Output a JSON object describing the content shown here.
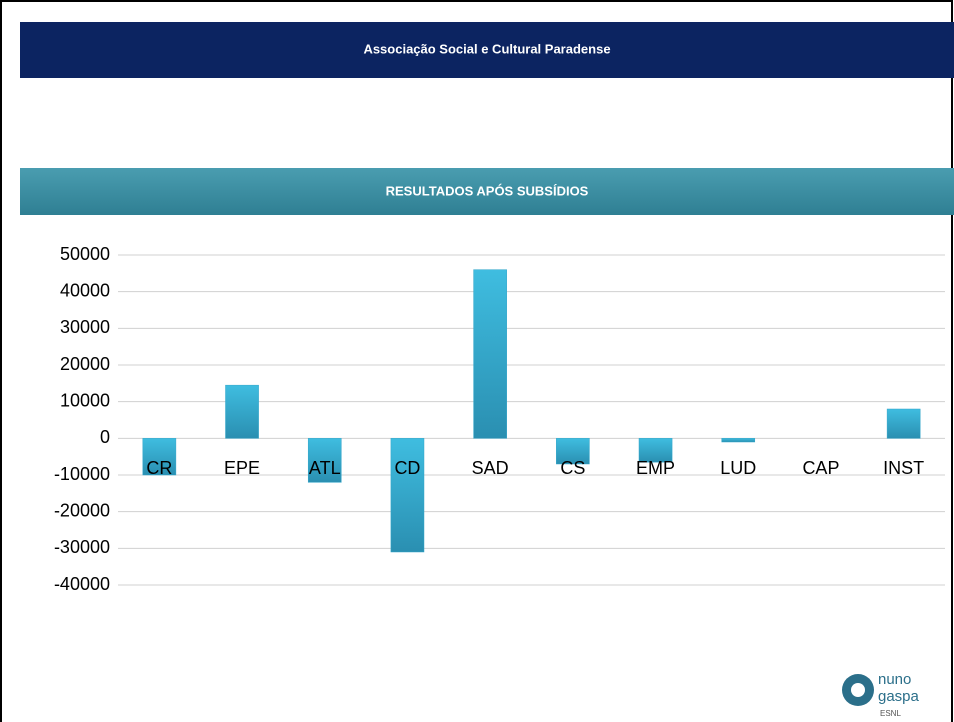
{
  "header": {
    "title": "Associação Social e Cultural Paradense"
  },
  "chart_data": {
    "type": "bar",
    "title": "RESULTADOS APÓS SUBSÍDIOS",
    "categories": [
      "CR",
      "EPE",
      "ATL",
      "CD",
      "SAD",
      "CS",
      "EMP",
      "LUD",
      "CAP",
      "INST"
    ],
    "values": [
      -10000,
      14500,
      -12000,
      -31000,
      46000,
      -7000,
      -6500,
      -1000,
      0,
      8000
    ],
    "color": "#31a5c9",
    "ylim": [
      -40000,
      50000
    ],
    "yticks": [
      -40000,
      -30000,
      -20000,
      -10000,
      0,
      10000,
      20000,
      30000,
      40000,
      50000
    ],
    "grid": true
  },
  "logo": {
    "line1": "nuno",
    "line2": "gaspa",
    "line3": "ESNL"
  }
}
